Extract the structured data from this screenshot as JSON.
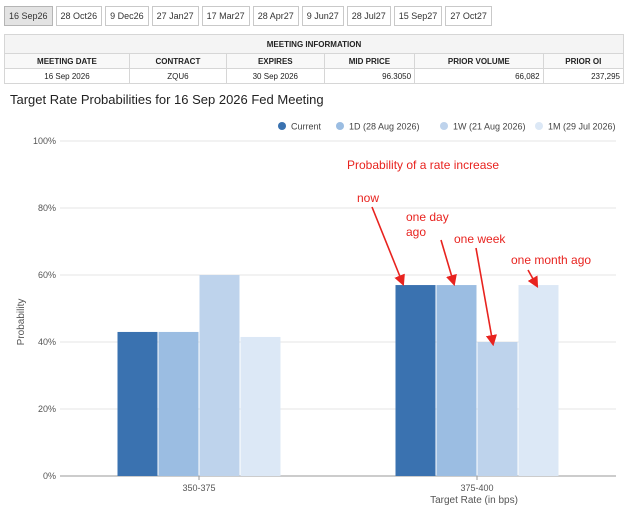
{
  "tabs": [
    {
      "label": "16 Sep26",
      "active": true
    },
    {
      "label": "28 Oct26"
    },
    {
      "label": "9 Dec26"
    },
    {
      "label": "27 Jan27"
    },
    {
      "label": "17 Mar27"
    },
    {
      "label": "28 Apr27"
    },
    {
      "label": "9 Jun27"
    },
    {
      "label": "28 Jul27"
    },
    {
      "label": "15 Sep27"
    },
    {
      "label": "27 Oct27"
    }
  ],
  "meeting_info": {
    "title": "MEETING INFORMATION",
    "headers": [
      "MEETING DATE",
      "CONTRACT",
      "EXPIRES",
      "MID PRICE",
      "PRIOR VOLUME",
      "PRIOR OI"
    ],
    "values": [
      "16 Sep 2026",
      "ZQU6",
      "30 Sep 2026",
      "96.3050",
      "66,082",
      "237,295"
    ]
  },
  "chart_title": "Target Rate Probabilities for 16 Sep 2026 Fed Meeting",
  "chart_data": {
    "type": "bar",
    "categories": [
      "350-375",
      "375-400"
    ],
    "series": [
      {
        "name": "Current",
        "values": [
          43,
          57
        ],
        "color": "#3a72b0"
      },
      {
        "name": "1D (28 Aug 2026)",
        "values": [
          43,
          57
        ],
        "color": "#9bbde2"
      },
      {
        "name": "1W (21 Aug 2026)",
        "values": [
          60,
          40
        ],
        "color": "#bed3ec"
      },
      {
        "name": "1M (29 Jul 2026)",
        "values": [
          41.5,
          57
        ],
        "color": "#dce8f6"
      }
    ],
    "xlabel": "Target Rate (in bps)",
    "ylabel": "Probability",
    "ylim": [
      0,
      100
    ],
    "yticks": [
      "0%",
      "20%",
      "40%",
      "60%",
      "80%",
      "100%"
    ],
    "legend_position": "top-right",
    "grid": "horizontal",
    "annotations": {
      "heading": "Probability of a rate increase",
      "labels": [
        "now",
        "one day ago",
        "one week",
        "one month ago"
      ],
      "color": "#e8231f"
    }
  }
}
